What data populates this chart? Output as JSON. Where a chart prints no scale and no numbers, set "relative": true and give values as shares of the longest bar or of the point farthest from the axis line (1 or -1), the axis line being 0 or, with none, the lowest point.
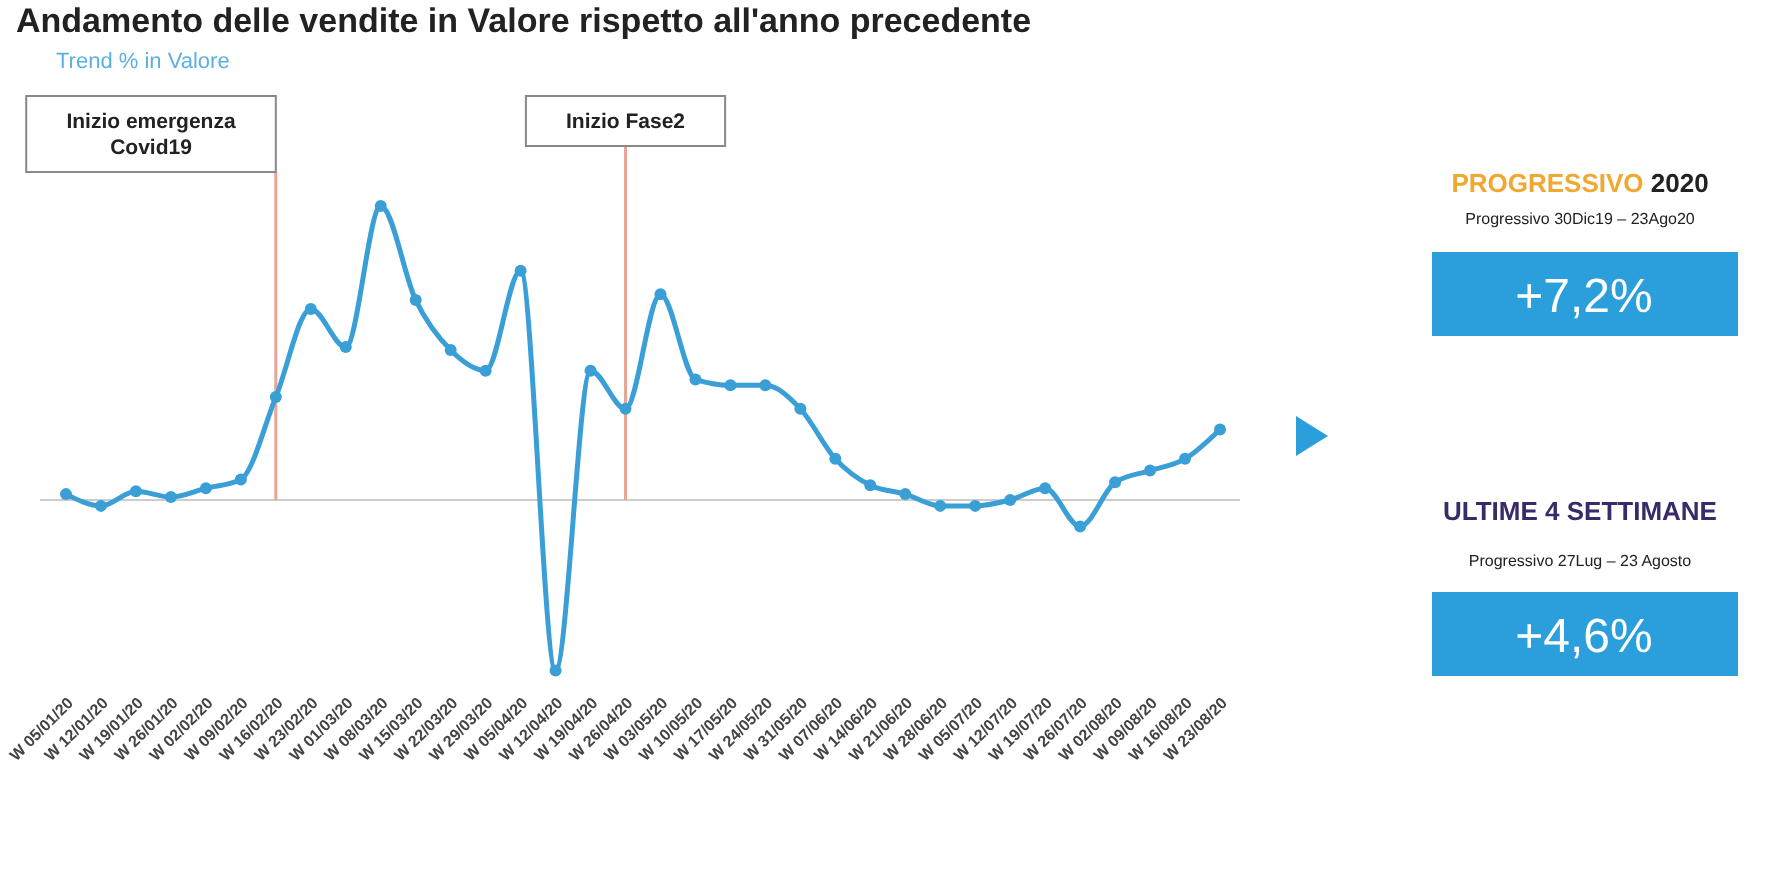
{
  "chart_data": [
    {
      "type": "line",
      "title": "Andamento delle vendite in Valore rispetto all'anno precedente",
      "subtitle": "Trend % in Valore",
      "relative": true,
      "marker": "circle",
      "categories": [
        "W 05/01/20",
        "W 12/01/20",
        "W 19/01/20",
        "W 26/01/20",
        "W 02/02/20",
        "W 09/02/20",
        "W 16/02/20",
        "W 23/02/20",
        "W 01/03/20",
        "W 08/03/20",
        "W 15/03/20",
        "W 22/03/20",
        "W 29/03/20",
        "W 05/04/20",
        "W 12/04/20",
        "W 19/04/20",
        "W 26/04/20",
        "W 03/05/20",
        "W 10/05/20",
        "W 17/05/20",
        "W 24/05/20",
        "W 31/05/20",
        "W 07/06/20",
        "W 14/06/20",
        "W 21/06/20",
        "W 28/06/20",
        "W 05/07/20",
        "W 12/07/20",
        "W 19/07/20",
        "W 26/07/20",
        "W 02/08/20",
        "W 09/08/20",
        "W 16/08/20",
        "W 23/08/20"
      ],
      "series": [
        {
          "color": "#3a9fd6",
          "values": [
            0.02,
            -0.02,
            0.03,
            0.01,
            0.04,
            0.07,
            0.35,
            0.65,
            0.52,
            1,
            0.68,
            0.51,
            0.44,
            0.78,
            -0.58,
            0.44,
            0.31,
            0.7,
            0.41,
            0.39,
            0.39,
            0.31,
            0.14,
            0.05,
            0.02,
            -0.02,
            -0.02,
            0,
            0.04,
            -0.09,
            0.06,
            0.1,
            0.14,
            0.24
          ]
        }
      ],
      "ref_lines": [
        {
          "axis": "x",
          "value": "W 16/02/20",
          "label": "Inizio emergenza Covid19",
          "color": "#e8a595"
        },
        {
          "axis": "x",
          "value": "W 26/04/20",
          "label": "Inizio Fase2",
          "color": "#e8a595"
        }
      ]
    },
    {
      "type": "other",
      "title": "PROGRESSIVO 2020",
      "annotations": [
        "Progressivo 30Dic19 – 23Ago20",
        "+7,2%",
        "ULTIME 4 SETTIMANE",
        "Progressivo 27Lug – 23 Agosto",
        "+4,6%"
      ]
    }
  ]
}
